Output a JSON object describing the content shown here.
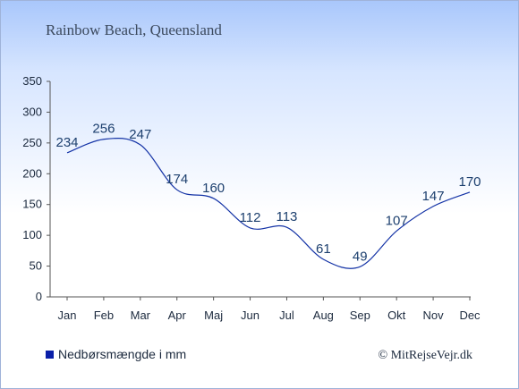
{
  "chart_data": {
    "type": "line",
    "title": "Rainbow Beach, Queensland",
    "categories": [
      "Jan",
      "Feb",
      "Mar",
      "Apr",
      "Maj",
      "Jun",
      "Jul",
      "Aug",
      "Sep",
      "Okt",
      "Nov",
      "Dec"
    ],
    "series": [
      {
        "name": "Nedbørsmængde i mm",
        "values": [
          234,
          256,
          247,
          174,
          160,
          112,
          113,
          61,
          49,
          107,
          147,
          170
        ],
        "color": "#1433a6"
      }
    ],
    "yticks": [
      0,
      50,
      100,
      150,
      200,
      250,
      300,
      350
    ],
    "ylim": [
      0,
      350
    ],
    "grid": false,
    "legend": "bottom-left"
  },
  "legend": {
    "label": "Nedbørsmængde i mm",
    "marker_color": "#0a1fa8"
  },
  "credit": "© MitRejseVejr.dk"
}
